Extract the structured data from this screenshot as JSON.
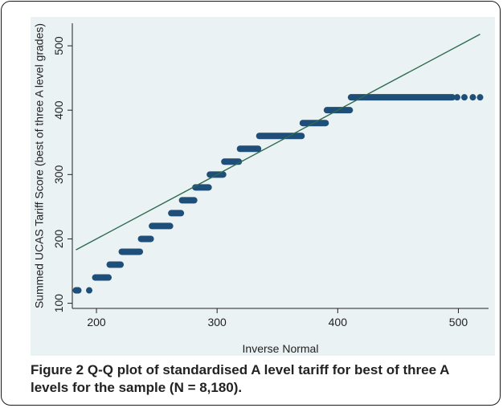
{
  "caption": {
    "label": "Figure 2",
    "text": "Q-Q plot of standardised A level tariff for best of three A levels for the sample (N = 8,180)."
  },
  "colors": {
    "panel_background": "#eaf2f3",
    "points": "#1f4e79",
    "reference_line": "#2e6b4f"
  },
  "chart_data": {
    "type": "scatter",
    "subtype": "qq-plot",
    "xlabel": "Inverse Normal",
    "ylabel": "Summed UCAS Tariff Score (best of three A level grades)",
    "xlim": [
      180,
      525
    ],
    "ylim": [
      92,
      535
    ],
    "xticks": [
      200,
      300,
      400,
      500
    ],
    "yticks": [
      100,
      200,
      300,
      400,
      500
    ],
    "grid": false,
    "reference_line": {
      "x": [
        183,
        518
      ],
      "y": [
        183,
        518
      ]
    },
    "steps": [
      {
        "y": 120,
        "x_start": 183,
        "x_end": 185
      },
      {
        "y": 120,
        "x_start": 194,
        "x_end": 194
      },
      {
        "y": 140,
        "x_start": 199,
        "x_end": 210
      },
      {
        "y": 160,
        "x_start": 211,
        "x_end": 220
      },
      {
        "y": 180,
        "x_start": 221,
        "x_end": 236
      },
      {
        "y": 200,
        "x_start": 237,
        "x_end": 245
      },
      {
        "y": 220,
        "x_start": 246,
        "x_end": 261
      },
      {
        "y": 240,
        "x_start": 262,
        "x_end": 270
      },
      {
        "y": 260,
        "x_start": 271,
        "x_end": 281
      },
      {
        "y": 280,
        "x_start": 282,
        "x_end": 293
      },
      {
        "y": 300,
        "x_start": 294,
        "x_end": 305
      },
      {
        "y": 320,
        "x_start": 306,
        "x_end": 318
      },
      {
        "y": 340,
        "x_start": 319,
        "x_end": 334
      },
      {
        "y": 360,
        "x_start": 335,
        "x_end": 370
      },
      {
        "y": 380,
        "x_start": 371,
        "x_end": 390
      },
      {
        "y": 400,
        "x_start": 391,
        "x_end": 410
      },
      {
        "y": 420,
        "x_start": 411,
        "x_end": 495
      },
      {
        "y": 420,
        "x_start": 499,
        "x_end": 499
      },
      {
        "y": 420,
        "x_start": 505,
        "x_end": 505
      },
      {
        "y": 420,
        "x_start": 512,
        "x_end": 512
      },
      {
        "y": 420,
        "x_start": 518,
        "x_end": 518
      }
    ]
  }
}
